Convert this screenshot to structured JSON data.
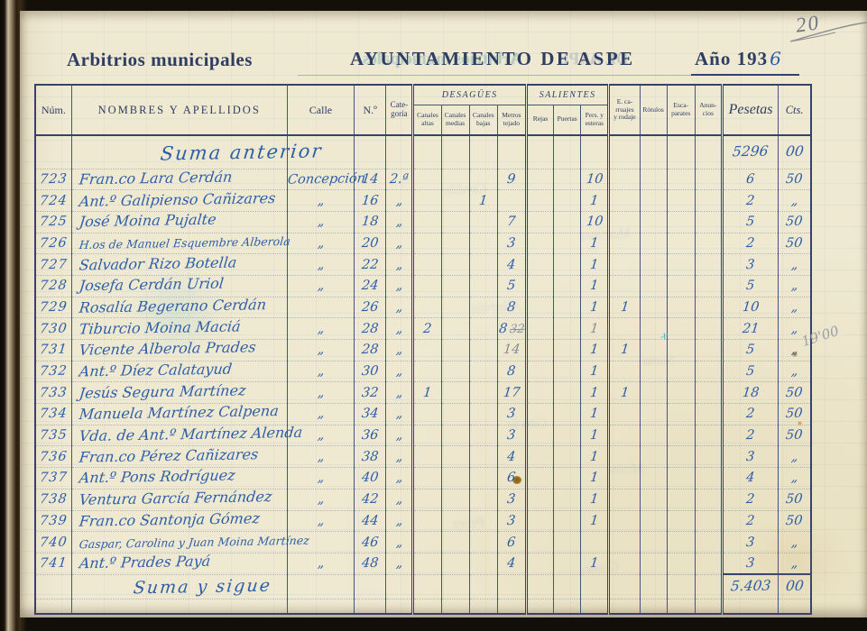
{
  "photo": {
    "corner_page_number": "20",
    "margin_note": "19'00",
    "teal_mark": "x"
  },
  "header": {
    "left_title": "Arbitrios municipales",
    "center_title": "AYUNTAMIENTO  DE  ASPE",
    "year_printed": "Año 193",
    "year_handwritten": "6",
    "ghost_left": "Arbitrios municipales",
    "ghost_right": "DE ASPE"
  },
  "ghost_words": [
    "Cerdán",
    "Martínez",
    "Alberola",
    "Suma",
    "García",
    "Moina",
    "Pérez",
    "Gómez"
  ],
  "table": {
    "columns": {
      "num": "Núm.",
      "names": "NOMBRES  Y  APELLIDOS",
      "calle": "Calle",
      "no": "N.º",
      "cat": "Cate-\ngoría",
      "groups": [
        {
          "label": "DESAGÜES",
          "children": [
            "Canales\naltas",
            "Canales\nmedias",
            "Canales\nbajas",
            "Metros\ntejado"
          ]
        },
        {
          "label": "SALIENTES",
          "children": [
            "Rejas",
            "Puertas",
            "Pers. y\nesteras"
          ]
        }
      ],
      "carr": "E. ca-\nrruajes\ny rodaje",
      "rot": "Rótulos",
      "esc": "Esca-\nparates",
      "anun": "Anun-\ncios",
      "ptas": "Pesetas",
      "cts": "Cts."
    },
    "rows": [
      {
        "row_class": "opening",
        "label": "Suma anterior",
        "ptas": "5296",
        "cts": "00"
      },
      {
        "num": "723",
        "name": "Fran.co Lara Cerdán",
        "calle": "Concepción",
        "no": "14",
        "cat": "2.ª",
        "mt": "9",
        "pers": "10",
        "ptas": "6",
        "cts": "50"
      },
      {
        "num": "724",
        "name": "Ant.º Galipienso Cañizares",
        "calle": "„",
        "no": "16",
        "cat": "„",
        "cb": "1",
        "pers": "1",
        "ptas": "2",
        "cts": "„"
      },
      {
        "num": "725",
        "name": "José Moina Pujalte",
        "calle": "„",
        "no": "18",
        "cat": "„",
        "mt": "7",
        "pers": "10",
        "ptas": "5",
        "cts": "50"
      },
      {
        "num": "726",
        "name": "H.os de Manuel Esquembre Alberola",
        "name_small": true,
        "calle": "„",
        "no": "20",
        "cat": "„",
        "mt": "3",
        "pers": "1",
        "ptas": "2",
        "cts": "50"
      },
      {
        "num": "727",
        "name": "Salvador Rizo Botella",
        "calle": "„",
        "no": "22",
        "cat": "„",
        "mt": "4",
        "pers": "1",
        "ptas": "3",
        "cts": "„"
      },
      {
        "num": "728",
        "name": "Josefa Cerdán Uriol",
        "calle": "„",
        "no": "24",
        "cat": "„",
        "mt": "5",
        "pers": "1",
        "ptas": "5",
        "cts": "„"
      },
      {
        "num": "729",
        "name": "Rosalía Begerano Cerdán",
        "no": "26",
        "cat": "„",
        "mt": "8",
        "pers": "1",
        "carr": "1",
        "ptas": "10",
        "cts": "„"
      },
      {
        "num": "730",
        "name": "Tiburcio Moina Maciá",
        "calle": "„",
        "no": "28",
        "cat": "„",
        "ca": "2",
        "mt": "8",
        "mt_struck": "32",
        "pers": "1",
        "pers_pencil": true,
        "ptas": "21",
        "cts": "„"
      },
      {
        "num": "731",
        "name": "Vicente Alberola Prades",
        "calle": "„",
        "no": "28",
        "cat": "„",
        "mt": "14",
        "mt_pencil": true,
        "pers": "1",
        "carr": "1",
        "ptas": "5",
        "cts": "„"
      },
      {
        "num": "732",
        "name": "Ant.º Díez Calatayud",
        "calle": "„",
        "no": "30",
        "cat": "„",
        "mt": "8",
        "pers": "1",
        "ptas": "5",
        "cts": "„"
      },
      {
        "num": "733",
        "name": "Jesús Segura Martínez",
        "calle": "„",
        "no": "32",
        "cat": "„",
        "ca": "1",
        "mt": "17",
        "pers": "1",
        "carr": "1",
        "ptas": "18",
        "cts": "50"
      },
      {
        "num": "734",
        "name": "Manuela Martínez Calpena",
        "calle": "„",
        "no": "34",
        "cat": "„",
        "mt": "3",
        "pers": "1",
        "ptas": "2",
        "cts": "50"
      },
      {
        "num": "735",
        "name": "Vda. de Ant.º Martínez Alenda",
        "calle": "„",
        "no": "36",
        "cat": "„",
        "mt": "3",
        "pers": "1",
        "ptas": "2",
        "cts": "50"
      },
      {
        "num": "736",
        "name": "Fran.co Pérez Cañizares",
        "calle": "„",
        "no": "38",
        "cat": "„",
        "mt": "4",
        "pers": "1",
        "ptas": "3",
        "cts": "„"
      },
      {
        "num": "737",
        "name": "Ant.º Pons Rodríguez",
        "calle": "„",
        "no": "40",
        "cat": "„",
        "mt": "6",
        "pers": "1",
        "ptas": "4",
        "cts": "„"
      },
      {
        "num": "738",
        "name": "Ventura García Fernández",
        "calle": "„",
        "no": "42",
        "cat": "„",
        "mt": "3",
        "pers": "1",
        "ptas": "2",
        "cts": "50"
      },
      {
        "num": "739",
        "name": "Fran.co Santonja Gómez",
        "calle": "„",
        "no": "44",
        "cat": "„",
        "mt": "3",
        "pers": "1",
        "ptas": "2",
        "cts": "50"
      },
      {
        "num": "740",
        "name": "Gaspar, Carolina y Juan Moina Martínez",
        "name_small": true,
        "no": "46",
        "cat": "„",
        "mt": "6",
        "ptas": "3",
        "cts": "„"
      },
      {
        "num": "741",
        "name": "Ant.º Prades Payá",
        "calle": "„",
        "no": "48",
        "cat": "„",
        "mt": "4",
        "pers": "1",
        "ptas": "3",
        "cts": "„"
      },
      {
        "row_class": "closing",
        "label": "Suma y sigue",
        "ptas": "5.403",
        "cts": "00"
      },
      {
        "row_class": "spacer"
      }
    ]
  }
}
